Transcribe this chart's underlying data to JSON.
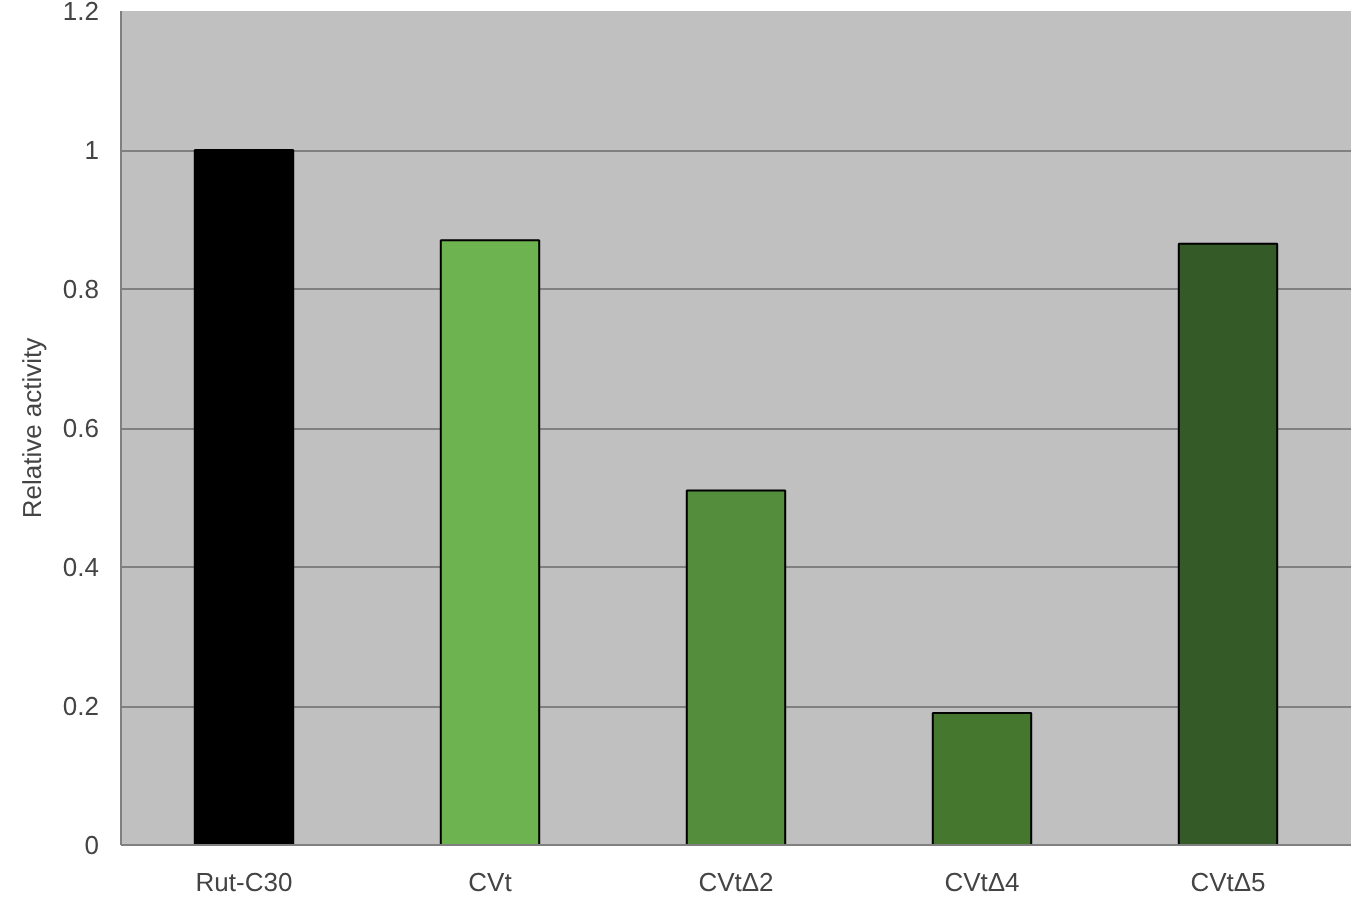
{
  "chart_data": {
    "type": "bar",
    "ylabel": "Relative activity",
    "categories": [
      "Rut-C30",
      "CVt",
      "CVtΔ2",
      "CVtΔ4",
      "CVtΔ5"
    ],
    "values": [
      1.0,
      0.87,
      0.51,
      0.19,
      0.865
    ],
    "colors": [
      "#000000",
      "#6db350",
      "#548d3c",
      "#46772e",
      "#345b27"
    ],
    "ylim": [
      0,
      1.2
    ],
    "yticks": [
      0,
      0.2,
      0.4,
      0.6,
      0.8,
      1,
      1.2
    ],
    "grid": "y"
  }
}
